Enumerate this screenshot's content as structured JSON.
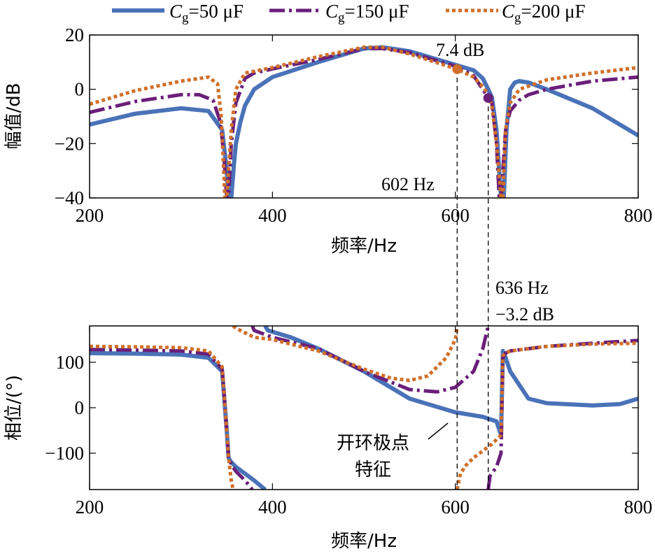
{
  "legend": {
    "entries": [
      {
        "prefix": "C",
        "sub": "g",
        "suffix": "=50 μF",
        "color": "#4a72b8",
        "dash": "solid"
      },
      {
        "prefix": "C",
        "sub": "g",
        "suffix": "=150 μF",
        "color": "#6a1f7a",
        "dash": "dashdot"
      },
      {
        "prefix": "C",
        "sub": "g",
        "suffix": "=200 μF",
        "color": "#d0702a",
        "dash": "dotted"
      }
    ]
  },
  "chart_data": [
    {
      "type": "line",
      "panel": "magnitude",
      "xlabel": "频率/Hz",
      "ylabel": "幅值/dB",
      "xlim": [
        200,
        800
      ],
      "ylim": [
        -40,
        20
      ],
      "xticks": [
        200,
        400,
        600,
        800
      ],
      "yticks": [
        -40,
        -20,
        0,
        20
      ],
      "grid": false,
      "legend": "top",
      "series": [
        {
          "name": "Cg=50 μF",
          "color": "#4a72b8",
          "x": [
            200,
            250,
            300,
            330,
            345,
            350,
            352,
            355,
            358,
            360,
            365,
            370,
            380,
            400,
            450,
            500,
            520,
            550,
            600,
            620,
            630,
            636,
            640,
            645,
            650,
            653,
            656,
            660,
            665,
            670,
            680,
            700,
            750,
            800
          ],
          "y": [
            -13,
            -9,
            -7,
            -8,
            -15,
            -30,
            -40,
            -40,
            -27,
            -20,
            -12,
            -6,
            0,
            4.5,
            10,
            15,
            15.5,
            14,
            9,
            7,
            4,
            0,
            -3,
            -15,
            -40,
            -40,
            -15,
            0,
            2.5,
            3,
            2.5,
            0,
            -7,
            -17
          ]
        },
        {
          "name": "Cg=150 μF",
          "color": "#6a1f7a",
          "x": [
            200,
            250,
            300,
            320,
            335,
            343,
            347,
            350,
            352,
            355,
            360,
            370,
            380,
            400,
            450,
            500,
            520,
            550,
            600,
            620,
            630,
            636,
            640,
            645,
            648,
            650,
            655,
            660,
            670,
            680,
            700,
            750,
            800
          ],
          "y": [
            -8.5,
            -4.5,
            -2,
            -2,
            -4,
            -12,
            -25,
            -40,
            -40,
            -20,
            -5,
            4,
            6,
            7.5,
            11,
            15,
            15,
            13.5,
            8.5,
            5,
            0,
            -3.2,
            -5,
            -20,
            -40,
            -40,
            -15,
            -8,
            -4,
            -2,
            0,
            3,
            4.5
          ]
        },
        {
          "name": "Cg=200 μF",
          "color": "#d0702a",
          "x": [
            200,
            250,
            300,
            330,
            340,
            344,
            348,
            350,
            352,
            355,
            360,
            370,
            400,
            450,
            500,
            520,
            550,
            602,
            620,
            630,
            636,
            640,
            645,
            650,
            652,
            655,
            660,
            670,
            700,
            750,
            800
          ],
          "y": [
            -5.5,
            -0.5,
            3,
            4.5,
            2,
            -10,
            -40,
            -40,
            -30,
            -15,
            0,
            6,
            8,
            12,
            15.5,
            15.5,
            13,
            7.4,
            4.5,
            1,
            -2,
            -6,
            -20,
            -40,
            -40,
            -15,
            -5,
            0,
            3.5,
            6,
            8
          ]
        }
      ],
      "annotations": [
        {
          "text": "7.4 dB",
          "x": 602,
          "y": 7.4,
          "marker_color": "#d0702a"
        },
        {
          "text": "602 Hz",
          "x": 602
        },
        {
          "text": "636 Hz",
          "x": 636
        },
        {
          "text": "−3.2 dB",
          "x": 636,
          "y": -3.2,
          "marker_color": "#6a1f7a"
        }
      ]
    },
    {
      "type": "line",
      "panel": "phase",
      "xlabel": "频率/Hz",
      "ylabel": "相位/(°)",
      "xlim": [
        200,
        800
      ],
      "ylim": [
        -180,
        180
      ],
      "xticks": [
        200,
        400,
        600,
        800
      ],
      "yticks": [
        -100,
        0,
        100
      ],
      "grid": false,
      "series": [
        {
          "name": "Cg=50 μF",
          "color": "#4a72b8",
          "x": [
            200,
            250,
            300,
            330,
            345,
            350,
            352,
            355,
            360,
            380,
            392,
            392,
            395,
            420,
            450,
            500,
            550,
            600,
            630,
            645,
            650,
            652,
            655,
            660,
            680,
            700,
            750,
            780,
            800
          ],
          "y": [
            120,
            119,
            117,
            110,
            80,
            -50,
            -110,
            -120,
            -130,
            -160,
            -180,
            180,
            170,
            155,
            130,
            80,
            20,
            -10,
            -20,
            -30,
            -60,
            125,
            110,
            80,
            20,
            10,
            5,
            8,
            20
          ]
        },
        {
          "name": "Cg=150 μF",
          "color": "#6a1f7a",
          "x": [
            200,
            250,
            300,
            330,
            345,
            350,
            352,
            355,
            360,
            370,
            378,
            378,
            380,
            400,
            450,
            500,
            550,
            580,
            600,
            620,
            630,
            636,
            636,
            638,
            645,
            650,
            652,
            655,
            660,
            700,
            750,
            800
          ],
          "y": [
            128,
            127,
            125,
            118,
            85,
            -50,
            -110,
            -125,
            -140,
            -160,
            -180,
            180,
            170,
            155,
            130,
            80,
            40,
            35,
            45,
            80,
            130,
            180,
            -180,
            -150,
            -130,
            -100,
            110,
            120,
            125,
            135,
            142,
            148
          ]
        },
        {
          "name": "Cg=200 μF",
          "color": "#d0702a",
          "x": [
            200,
            250,
            300,
            330,
            345,
            350,
            352,
            355,
            357,
            357,
            360,
            380,
            400,
            450,
            500,
            530,
            550,
            570,
            590,
            600,
            602,
            602,
            605,
            610,
            620,
            640,
            650,
            652,
            655,
            660,
            700,
            750,
            800
          ],
          "y": [
            135,
            134,
            132,
            125,
            90,
            -50,
            -110,
            -160,
            -180,
            180,
            175,
            155,
            150,
            125,
            85,
            65,
            60,
            70,
            110,
            150,
            180,
            -180,
            -150,
            -130,
            -110,
            -80,
            -60,
            115,
            120,
            125,
            135,
            140,
            142
          ]
        }
      ],
      "annotations": [
        {
          "text": "开环极点",
          "x": 630,
          "y": -30
        },
        {
          "text": "特征",
          "x": 630,
          "y": -30
        }
      ]
    }
  ]
}
